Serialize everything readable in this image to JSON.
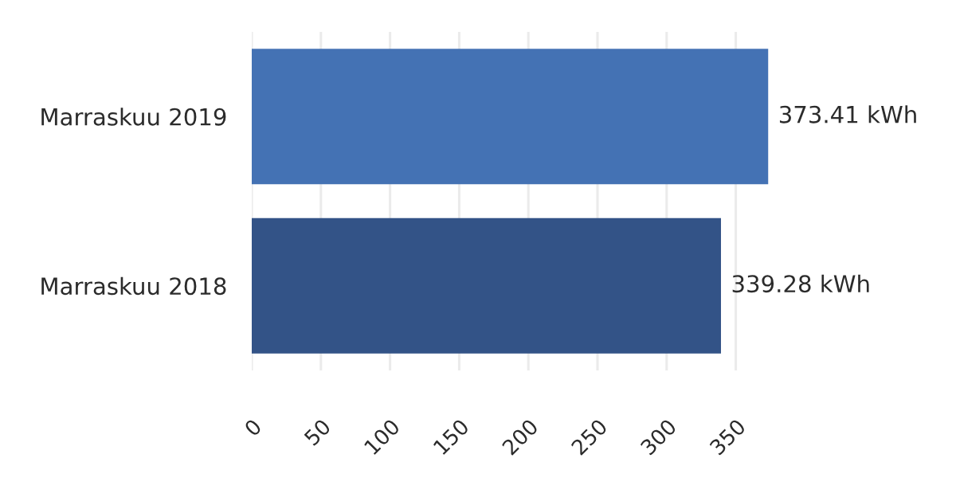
{
  "chart_data": {
    "type": "bar",
    "orientation": "horizontal",
    "categories": [
      "Marraskuu 2019",
      "Marraskuu 2018"
    ],
    "values": [
      373.41,
      339.28
    ],
    "colors": [
      "#4472b4",
      "#335387"
    ],
    "value_labels": [
      "373.41 kWh",
      "339.28 kWh"
    ],
    "xlim": [
      0,
      375
    ],
    "xticks": [
      0,
      50,
      100,
      150,
      200,
      250,
      300,
      350
    ],
    "grid": "x"
  }
}
